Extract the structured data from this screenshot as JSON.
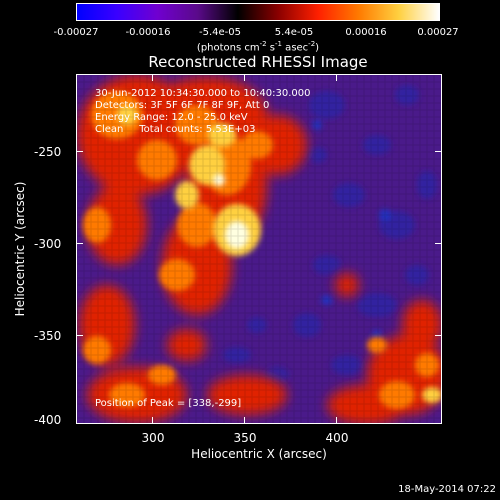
{
  "colorbar": {
    "tick_labels": [
      "-0.00027",
      "-0.00016",
      "-5.4e-05",
      "5.4e-05",
      "0.00016",
      "0.00027"
    ],
    "units_prefix": "(photons cm",
    "units_exp1": "-2",
    "units_mid": " s",
    "units_exp2": "-1",
    "units_mid2": " asec",
    "units_exp3": "-2",
    "units_suffix": ")",
    "colors": [
      "#0000ff",
      "#3a00ff",
      "#7000d0",
      "#5a0a8a",
      "#000000",
      "#8a0000",
      "#ff2000",
      "#ff7a00",
      "#ffd040",
      "#ffffff"
    ]
  },
  "title": "Reconstructed RHESSI Image",
  "info": {
    "time_range": "30-Jun-2012 10:34:30.000 to 10:40:30.000",
    "detectors": "Detectors: 3F 5F 6F 7F 8F 9F, Att 0",
    "energy": "Energy Range: 12.0 - 25.0 keV",
    "method": "Clean     Total counts: 5.53E+03",
    "peak": "Position of Peak = [338,-299]"
  },
  "axes": {
    "xlabel": "Heliocentric X (arcsec)",
    "ylabel": "Heliocentric Y (arcsec)",
    "xticks": [
      "300",
      "350",
      "400"
    ],
    "yticks": [
      "-250",
      "-300",
      "-350",
      "-400"
    ]
  },
  "timestamp": "18-May-2014 07:22",
  "image_colors": {
    "background": "#4a1a8a",
    "dark_blob": "#3020a0",
    "deep_blue": "#2030c0",
    "red": "#e02000",
    "orange": "#ff7a00",
    "yellow": "#ffd040",
    "white": "#ffffe0"
  }
}
